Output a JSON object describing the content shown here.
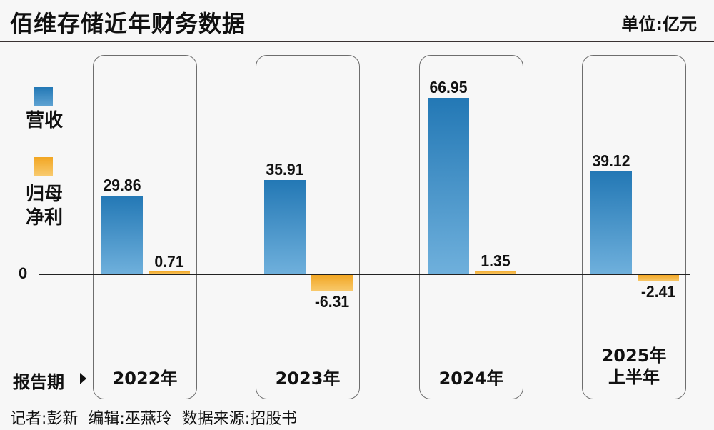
{
  "header": {
    "title": "佰维存储近年财务数据",
    "unit": "单位:亿元"
  },
  "legend": [
    {
      "label": "营收",
      "color": "#2378b5"
    },
    {
      "label": "归母\n净利",
      "color": "#f2a623"
    }
  ],
  "axis": {
    "zero_label": "0",
    "period_label": "报告期"
  },
  "categories": [
    "2022年",
    "2023年",
    "2024年",
    "2025年\n上半年"
  ],
  "labels": {
    "revenue": [
      "29.86",
      "35.91",
      "66.95",
      "39.12"
    ],
    "profit": [
      "0.71",
      "-6.31",
      "1.35",
      "-2.41"
    ]
  },
  "footer": {
    "text": "记者:彭新  编辑:巫燕玲  数据来源:招股书"
  },
  "chart_data": {
    "type": "bar",
    "title": "佰维存储近年财务数据",
    "subtitle": "单位:亿元",
    "categories": [
      "2022年",
      "2023年",
      "2024年",
      "2025年上半年"
    ],
    "series": [
      {
        "name": "营收",
        "values": [
          29.86,
          35.91,
          66.95,
          39.12
        ],
        "color": "#2378b5"
      },
      {
        "name": "归母净利",
        "values": [
          0.71,
          -6.31,
          1.35,
          -2.41
        ],
        "color": "#f2a623"
      }
    ],
    "xlabel": "报告期",
    "ylabel": "",
    "ylim": [
      -10,
      70
    ],
    "grid": false,
    "legend_position": "left",
    "source": "招股书"
  }
}
